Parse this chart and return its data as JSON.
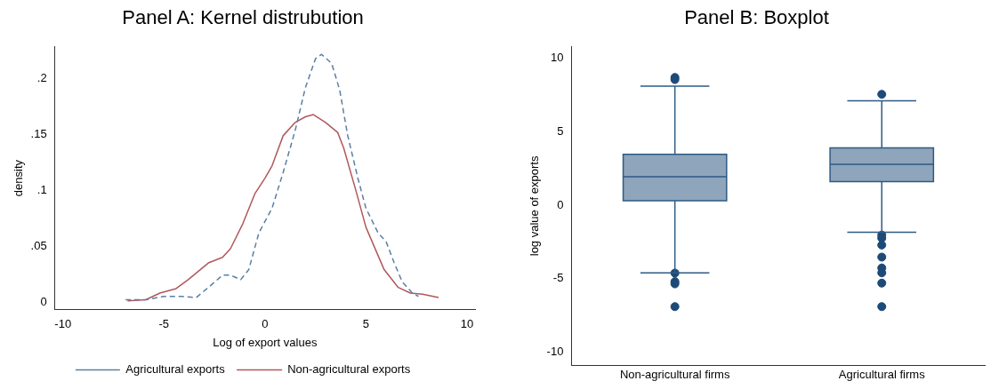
{
  "chart_data": [
    {
      "type": "line",
      "title": "Panel A: Kernel distrubution",
      "xlabel": "Log of export values",
      "ylabel": "density",
      "xlim": [
        -10.4,
        10.4
      ],
      "xticks": [
        -10,
        -5,
        0,
        5,
        10
      ],
      "ylim": [
        -0.007,
        0.229
      ],
      "yticks": [
        {
          "value": 0,
          "label": "0"
        },
        {
          "value": 0.05,
          "label": ".05"
        },
        {
          "value": 0.1,
          "label": ".1"
        },
        {
          "value": 0.15,
          "label": ".15"
        },
        {
          "value": 0.2,
          "label": ".2"
        }
      ],
      "legend": "bottom",
      "series": [
        {
          "name": "Agricultural exports",
          "color": "#5b7fa3",
          "line_style": "dashed",
          "x": [
            -6.9,
            -5.9,
            -5.0,
            -4.1,
            -3.4,
            -2.8,
            -2.1,
            -1.7,
            -1.2,
            -0.8,
            -0.3,
            0.35,
            0.9,
            1.5,
            2.0,
            2.5,
            2.8,
            3.3,
            3.7,
            4.1,
            4.6,
            5.0,
            5.6,
            6.0,
            6.4,
            6.8,
            7.3,
            7.6
          ],
          "values": [
            0.002,
            0.002,
            0.005,
            0.005,
            0.004,
            0.013,
            0.024,
            0.024,
            0.02,
            0.029,
            0.062,
            0.084,
            0.116,
            0.154,
            0.192,
            0.218,
            0.222,
            0.214,
            0.19,
            0.149,
            0.111,
            0.084,
            0.062,
            0.054,
            0.035,
            0.018,
            0.008,
            0.005
          ]
        },
        {
          "name": "Non-agricultural exports",
          "color": "#b0585c",
          "line_style": "solid",
          "x": [
            -6.8,
            -5.9,
            -5.2,
            -4.4,
            -3.8,
            -3.2,
            -2.8,
            -2.1,
            -1.7,
            -1.1,
            -0.5,
            0,
            0.35,
            0.9,
            1.5,
            2.0,
            2.4,
            3.0,
            3.6,
            3.9,
            4.5,
            5.0,
            5.9,
            6.6,
            7.2,
            7.8,
            8.6
          ],
          "values": [
            0.001,
            0.002,
            0.008,
            0.012,
            0.02,
            0.029,
            0.035,
            0.04,
            0.048,
            0.07,
            0.097,
            0.111,
            0.122,
            0.149,
            0.161,
            0.166,
            0.168,
            0.161,
            0.152,
            0.138,
            0.1,
            0.067,
            0.029,
            0.013,
            0.008,
            0.007,
            0.004
          ]
        }
      ]
    },
    {
      "type": "box",
      "title": "Panel B: Boxplot",
      "ylabel": "log value of exports",
      "categories": [
        "Non-agricultural firms",
        "Agricultural firms"
      ],
      "ylim": [
        -10.9,
        10.8
      ],
      "yticks": [
        -10,
        -5,
        0,
        5,
        10
      ],
      "marker": "circle",
      "series": [
        {
          "color": "#8ea5bb",
          "boxes": [
            {
              "low": -4.6,
              "q1": 0.3,
              "median": 1.94,
              "q3": 3.46,
              "high": 8.1,
              "outliers": [
                8.7,
                8.55,
                -4.62,
                -5.2,
                -5.35,
                -6.9
              ]
            },
            {
              "low": -1.84,
              "q1": 1.6,
              "median": 2.78,
              "q3": 3.9,
              "high": 7.1,
              "outliers": [
                7.55,
                -2.03,
                -2.24,
                -2.71,
                -3.53,
                -4.27,
                -4.6,
                -5.3,
                -6.9
              ]
            }
          ]
        }
      ]
    }
  ]
}
